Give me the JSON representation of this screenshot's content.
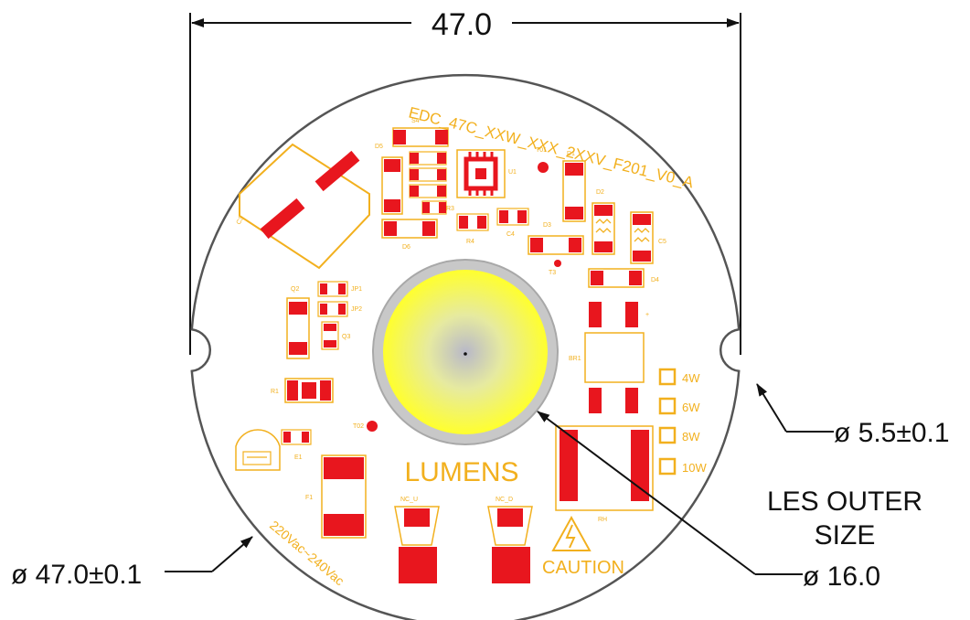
{
  "dimensions": {
    "top_width": "47.0",
    "diameter": "ø 47.0±0.1",
    "notch": "ø 5.5±0.1",
    "les_label_line1": "LES OUTER",
    "les_label_line2": "SIZE",
    "les_diameter": "ø 16.0"
  },
  "board": {
    "part_number": "EDC_47C_XXW_XXX_2XXV_F201_V0_A",
    "brand": "LUMENS",
    "voltage": "220Vac~240Vac",
    "caution": "CAUTION",
    "wattages": [
      "4W",
      "6W",
      "8W",
      "10W"
    ],
    "refs": {
      "s4": "S4",
      "d5": "D5",
      "u1": "U1",
      "t01": "T01",
      "d1": "D1",
      "d2": "D2",
      "r3": "R3",
      "r4": "R4",
      "c4": "C4",
      "c5": "C5",
      "d3": "D3",
      "t3": "T3",
      "d4": "D4",
      "d6": "D6",
      "jp1": "JP1",
      "jp2": "JP2",
      "q2": "Q2",
      "q3": "Q3",
      "br1": "BR1",
      "e1": "E1",
      "r1": "R1",
      "t02": "T02",
      "f1": "F1",
      "nc_u": "NC_U",
      "nc_d": "NC_D",
      "rh": "RH",
      "c3": "C3"
    }
  },
  "colors": {
    "board_outline": "#555555",
    "pad_red": "#e8161e",
    "silkscreen": "#f2b01e",
    "led_yellow": "#ffff33",
    "led_ring": "#b3b3b3",
    "dimension_line": "#111111"
  }
}
